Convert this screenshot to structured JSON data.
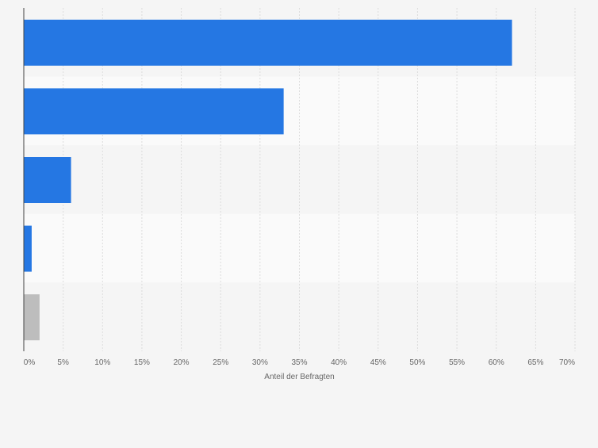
{
  "chart_data": {
    "type": "bar",
    "orientation": "horizontal",
    "categories": [
      "",
      "",
      "",
      "",
      ""
    ],
    "values": [
      62,
      33,
      6,
      1,
      2
    ],
    "bar_colors": [
      "#2577e3",
      "#2577e3",
      "#2577e3",
      "#2577e3",
      "#bdbdbd"
    ],
    "xlim": [
      0,
      70
    ],
    "xticks": [
      "0%",
      "5%",
      "10%",
      "15%",
      "20%",
      "25%",
      "30%",
      "35%",
      "40%",
      "45%",
      "50%",
      "55%",
      "60%",
      "65%",
      "70%"
    ],
    "xlabel": "Anteil der Befragten",
    "ylabel": "",
    "grid": true,
    "legend": "none"
  }
}
